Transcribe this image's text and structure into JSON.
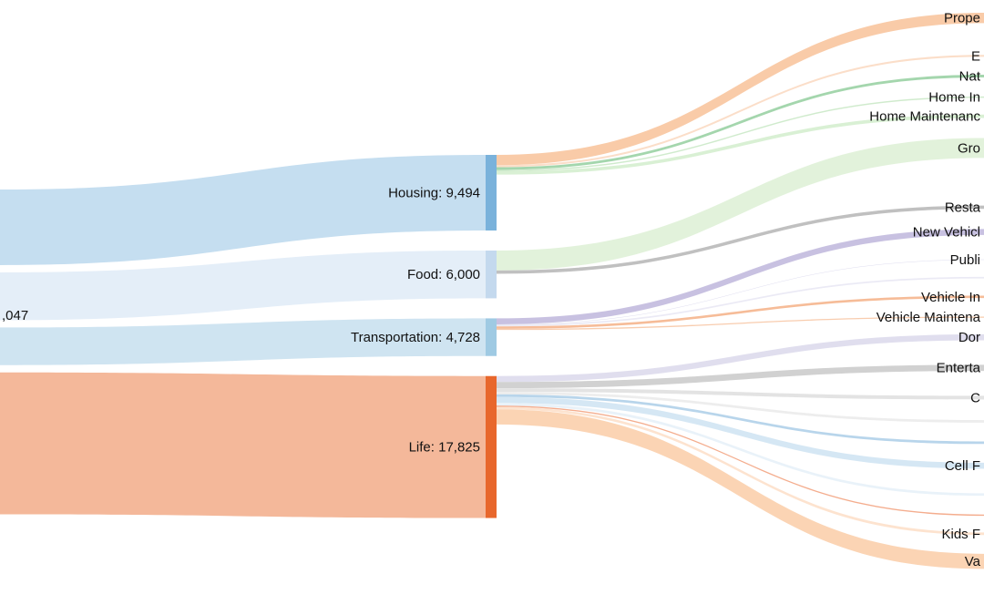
{
  "chart_data": {
    "type": "sankey",
    "source": {
      "label": ",047"
    },
    "categories": [
      {
        "id": "housing",
        "name": "Housing",
        "value": 9494,
        "label": "Housing: 9,494",
        "color": "#7ab2db",
        "flow_color": "#c5def0"
      },
      {
        "id": "food",
        "name": "Food",
        "value": 6000,
        "label": "Food: 6,000",
        "color": "#c4d9ee",
        "flow_color": "#e4eef8"
      },
      {
        "id": "transportation",
        "name": "Transportation",
        "value": 4728,
        "label": "Transportation: 4,728",
        "color": "#9fcae3",
        "flow_color": "#cfe4f1"
      },
      {
        "id": "life",
        "name": "Life",
        "value": 17825,
        "label": "Life: 17,825",
        "color": "#e8672c",
        "flow_color": "#f4b89a"
      }
    ],
    "expenses": [
      {
        "label": "Prope",
        "parent": "housing",
        "value": 1300,
        "color": "#f9c8a3"
      },
      {
        "label": "E",
        "parent": "housing",
        "value": 250,
        "color": "#fbdcc6"
      },
      {
        "label": "Nat",
        "parent": "housing",
        "value": 340,
        "color": "#9fd4a9"
      },
      {
        "label": "Home In",
        "parent": "housing",
        "value": 170,
        "color": "#cdeaca"
      },
      {
        "label": "Home Maintenanc",
        "parent": "housing",
        "value": 420,
        "color": "#d7efd2"
      },
      {
        "label": "Gro",
        "parent": "food",
        "value": 2500,
        "color": "#e0f1d9"
      },
      {
        "label": "Resta",
        "parent": "food",
        "value": 420,
        "color": "#bdbdbd"
      },
      {
        "label": "New Vehicl",
        "parent": "transportation",
        "value": 750,
        "color": "#c5bedf"
      },
      {
        "label": "Publi",
        "parent": "transportation",
        "value": 60,
        "color": "#dddcee"
      },
      {
        "label": "",
        "parent": "transportation",
        "value": 200,
        "color": "#eae9f4"
      },
      {
        "label": "Vehicle In",
        "parent": "transportation",
        "value": 300,
        "color": "#f6b892"
      },
      {
        "label": "Vehicle Maintena",
        "parent": "transportation",
        "value": 150,
        "color": "#f8c9aa"
      },
      {
        "label": "Dor",
        "parent": "life",
        "value": 750,
        "color": "#dedced"
      },
      {
        "label": "Enterta",
        "parent": "life",
        "value": 780,
        "color": "#cfcfcf"
      },
      {
        "label": "C",
        "parent": "life",
        "value": 460,
        "color": "#e2e2e2"
      },
      {
        "label": "",
        "parent": "life",
        "value": 320,
        "color": "#ececec"
      },
      {
        "label": "",
        "parent": "life",
        "value": 320,
        "color": "#b4d3ea"
      },
      {
        "label": "Cell F",
        "parent": "life",
        "value": 750,
        "color": "#d3e6f3"
      },
      {
        "label": "",
        "parent": "life",
        "value": 320,
        "color": "#e8f1f9"
      },
      {
        "label": "",
        "parent": "life",
        "value": 160,
        "color": "#f3a988"
      },
      {
        "label": "Kids F",
        "parent": "life",
        "value": 320,
        "color": "#fde2cc"
      },
      {
        "label": "Va",
        "parent": "life",
        "value": 1900,
        "color": "#fbd2b0"
      }
    ]
  }
}
